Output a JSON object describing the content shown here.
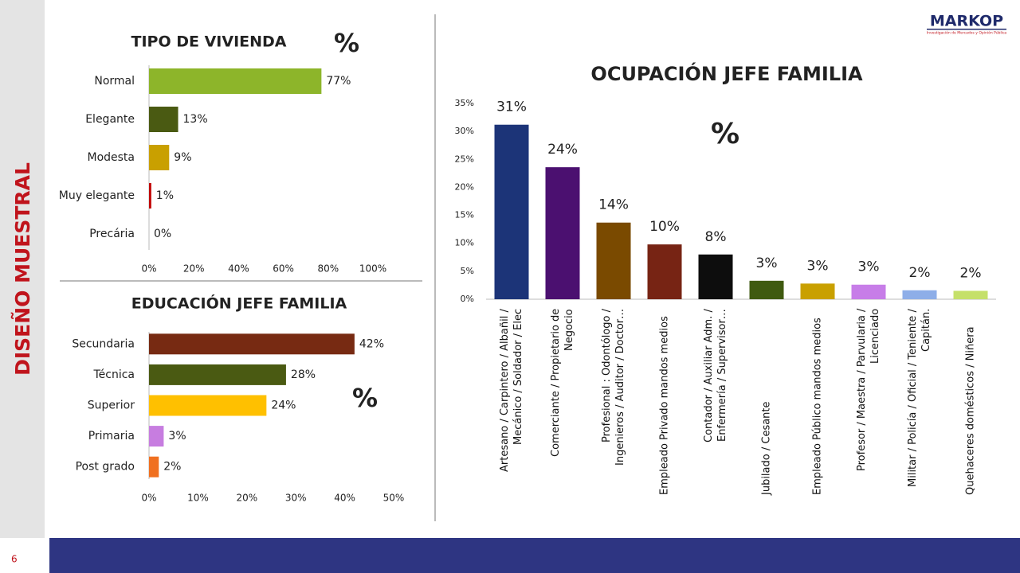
{
  "side_title": "DISEÑO MUESTRAL",
  "page_number": "6",
  "logo": {
    "name": "MARKOP",
    "tagline": "Investigación de Mercados y Opinión Pública"
  },
  "chart_data": [
    {
      "type": "bar",
      "orientation": "horizontal",
      "title": "TIPO DE VIVIENDA",
      "annotation": "%",
      "categories": [
        "Normal",
        "Elegante",
        "Modesta",
        "Muy elegante",
        "Precária"
      ],
      "values": [
        77,
        13,
        9,
        1,
        0
      ],
      "value_labels": [
        "77%",
        "13%",
        "9%",
        "1%",
        "0%"
      ],
      "colors": [
        "#8db52a",
        "#4a5a12",
        "#c9a000",
        "#c00000",
        "#999999"
      ],
      "xlim": [
        0,
        100
      ],
      "xticks": [
        {
          "value": 0,
          "label": "0%"
        },
        {
          "value": 20,
          "label": "20%"
        },
        {
          "value": 40,
          "label": "40%"
        },
        {
          "value": 60,
          "label": "60%"
        },
        {
          "value": 80,
          "label": "80%"
        },
        {
          "value": 100,
          "label": "100%"
        }
      ]
    },
    {
      "type": "bar",
      "orientation": "horizontal",
      "title": "EDUCACIÓN JEFE FAMILIA",
      "annotation": "%",
      "categories": [
        "Secundaria",
        "Técnica",
        "Superior",
        "Primaria",
        "Post grado"
      ],
      "values": [
        42,
        28,
        24,
        3,
        2
      ],
      "value_labels": [
        "42%",
        "28%",
        "24%",
        "3%",
        "2%"
      ],
      "colors": [
        "#772a12",
        "#4a5a12",
        "#ffc000",
        "#c77de0",
        "#f07020"
      ],
      "xlim": [
        0,
        50
      ],
      "xticks": [
        {
          "value": 0,
          "label": "0%"
        },
        {
          "value": 10,
          "label": "10%"
        },
        {
          "value": 20,
          "label": "20%"
        },
        {
          "value": 30,
          "label": "30%"
        },
        {
          "value": 40,
          "label": "40%"
        },
        {
          "value": 50,
          "label": "50%"
        }
      ]
    },
    {
      "type": "bar",
      "orientation": "vertical",
      "title": "OCUPACIÓN JEFE FAMILIA",
      "annotation": "%",
      "categories": [
        "Artesano / Carpintero / Albañil / Mecánico / Soldador / Elec",
        "Comerciante / Propietario de Negocio",
        "Profesional : Odontólogo / Ingenieros / Auditor / Doctor…",
        "Empleado Privado mandos medios",
        "Contador / Auxiliar Adm. / Enfermería / Supervisor…",
        "Jubilado / Cesante",
        "Empleado Público mandos medios",
        "Profesor / Maestra / Parvularia / Licenciado",
        "Militar / Policía / Oficial / Teniente / Capitán.",
        "Quehaceres domésticos / Niñera"
      ],
      "values": [
        31.2,
        23.6,
        13.7,
        9.8,
        8.0,
        3.3,
        2.8,
        2.6,
        1.6,
        1.5
      ],
      "value_labels": [
        "31%",
        "24%",
        "14%",
        "10%",
        "8%",
        "3%",
        "3%",
        "3%",
        "2%",
        "2%"
      ],
      "colors": [
        "#1c3478",
        "#4b1070",
        "#7a4a00",
        "#772414",
        "#0d0d0d",
        "#3f5a10",
        "#c9a000",
        "#c77de8",
        "#8eaee8",
        "#c5e06a"
      ],
      "ylim": [
        0,
        35
      ],
      "yticks": [
        {
          "value": 0,
          "label": "0%"
        },
        {
          "value": 5,
          "label": "5%"
        },
        {
          "value": 10,
          "label": "10%"
        },
        {
          "value": 15,
          "label": "15%"
        },
        {
          "value": 20,
          "label": "20%"
        },
        {
          "value": 25,
          "label": "25%"
        },
        {
          "value": 30,
          "label": "30%"
        },
        {
          "value": 35,
          "label": "35%"
        }
      ]
    }
  ]
}
